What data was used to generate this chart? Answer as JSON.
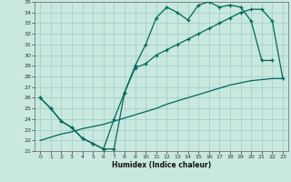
{
  "xlabel": "Humidex (Indice chaleur)",
  "bg_color": "#c8e8e0",
  "grid_color": "#a0ccc4",
  "line_color": "#006858",
  "xlim": [
    0,
    23
  ],
  "ylim": [
    21,
    35
  ],
  "yticks": [
    21,
    22,
    23,
    24,
    25,
    26,
    27,
    28,
    29,
    30,
    31,
    32,
    33,
    34,
    35
  ],
  "xticks": [
    0,
    1,
    2,
    3,
    4,
    5,
    6,
    7,
    8,
    9,
    10,
    11,
    12,
    13,
    14,
    15,
    16,
    17,
    18,
    19,
    20,
    21,
    22,
    23
  ],
  "line1_x": [
    0,
    1,
    2,
    3,
    4,
    5,
    6,
    7,
    8,
    9,
    10,
    11,
    12,
    13,
    14,
    15,
    16,
    17,
    18,
    19,
    20,
    21,
    22
  ],
  "line1_y": [
    26.0,
    25.0,
    23.8,
    23.2,
    22.2,
    21.7,
    21.2,
    21.2,
    26.5,
    29.0,
    31.0,
    33.5,
    34.5,
    34.0,
    33.3,
    34.7,
    35.0,
    34.5,
    34.7,
    34.5,
    33.2,
    29.5,
    29.5
  ],
  "line2_x": [
    0,
    1,
    2,
    3,
    4,
    5,
    6,
    7,
    8,
    9,
    10,
    11,
    12,
    13,
    14,
    15,
    16,
    17,
    18,
    19,
    20,
    21,
    22,
    23
  ],
  "line2_y": [
    26.0,
    25.0,
    23.8,
    23.2,
    22.2,
    21.7,
    21.2,
    24.0,
    26.5,
    28.8,
    29.2,
    30.0,
    30.5,
    31.0,
    31.5,
    32.0,
    32.5,
    33.0,
    33.5,
    34.0,
    34.3,
    34.3,
    33.2,
    27.8
  ],
  "line3_x": [
    0,
    1,
    2,
    3,
    4,
    5,
    6,
    7,
    8,
    9,
    10,
    11,
    12,
    13,
    14,
    15,
    16,
    17,
    18,
    19,
    20,
    21,
    22,
    23
  ],
  "line3_y": [
    22.0,
    22.3,
    22.6,
    22.8,
    23.1,
    23.3,
    23.5,
    23.8,
    24.1,
    24.4,
    24.7,
    25.0,
    25.4,
    25.7,
    26.0,
    26.3,
    26.6,
    26.9,
    27.2,
    27.4,
    27.6,
    27.7,
    27.8,
    27.8
  ]
}
